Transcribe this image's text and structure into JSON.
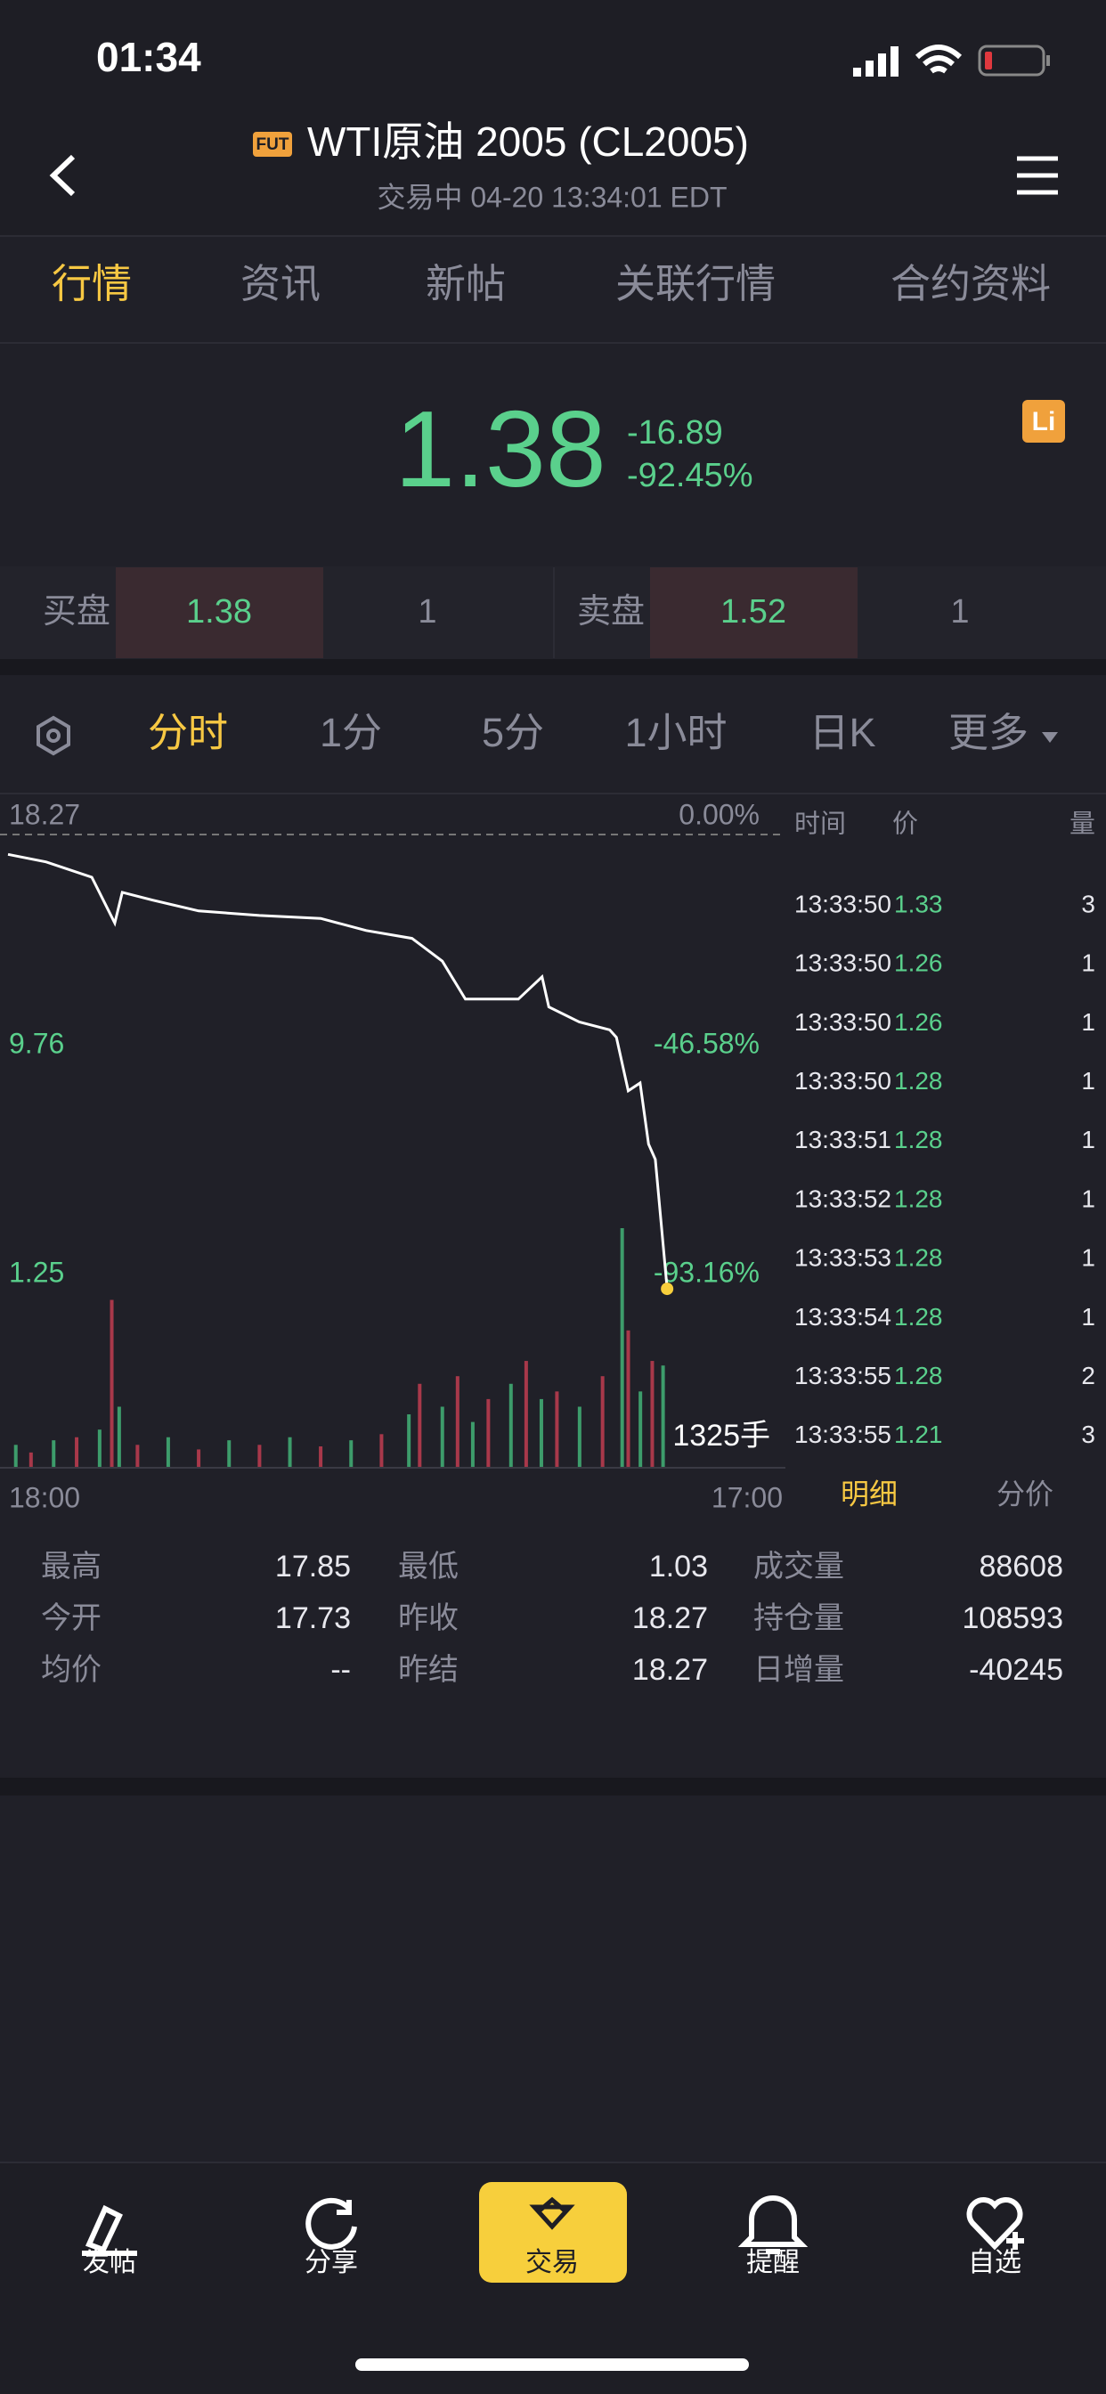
{
  "status_bar": {
    "time": "01:34"
  },
  "header": {
    "badge": "FUT",
    "title": "WTI原油 2005 (CL2005)",
    "subtitle": "交易中 04-20 13:34:01 EDT"
  },
  "tabs": {
    "items": [
      "行情",
      "资讯",
      "新帖",
      "关联行情",
      "合约资料"
    ],
    "active": 0
  },
  "quote": {
    "price": "1.38",
    "change": "-16.89",
    "change_pct": "-92.45%"
  },
  "order_book": {
    "bid_label": "买盘",
    "bid_price": "1.38",
    "bid_size": "1",
    "ask_label": "卖盘",
    "ask_price": "1.52",
    "ask_size": "1"
  },
  "periods": {
    "items": [
      "分时",
      "1分",
      "5分",
      "1小时",
      "日K",
      "更多"
    ],
    "active": 0
  },
  "chart_data": {
    "type": "line",
    "color": "#ffffff",
    "x": [
      0,
      1.13,
      2.48,
      3.16,
      3.38,
      4.28,
      5.64,
      7.44,
      9.25,
      10.6,
      11.95,
      12.85,
      13.53,
      14.2,
      15.1,
      15.8,
      16.0,
      16.9,
      17.8,
      18.0,
      18.35,
      18.7,
      18.95,
      19.15,
      19.5
    ],
    "values": [
      17.53,
      17.25,
      16.68,
      14.98,
      16.12,
      15.83,
      15.43,
      15.26,
      15.15,
      14.7,
      14.41,
      13.56,
      12.15,
      12.15,
      12.15,
      12.98,
      11.86,
      11.3,
      11.01,
      10.73,
      8.74,
      9.03,
      6.76,
      6.19,
      1.38
    ],
    "xlim": [
      0,
      23
    ],
    "xticks": [
      {
        "value": 0,
        "label": "18:00"
      },
      {
        "value": 23,
        "label": "17:00"
      }
    ],
    "ylim": [
      1.25,
      18.27
    ],
    "yticks": [
      18.27,
      9.76,
      1.25
    ],
    "y2lim": [
      -93.16,
      0
    ],
    "y2ticks": [
      {
        "value": 0,
        "label": "0.00%"
      },
      {
        "value": -46.58,
        "label": "-46.58%"
      },
      {
        "value": -93.16,
        "label": "-93.16%"
      }
    ],
    "volume": {
      "label": "1325手",
      "colors": [
        "#3d9c6b",
        "#a8384a"
      ],
      "x": [
        0.23,
        0.68,
        1.35,
        2.03,
        2.71,
        3.07,
        3.29,
        3.83,
        4.74,
        5.64,
        6.54,
        7.44,
        8.34,
        9.25,
        10.15,
        11.05,
        11.86,
        12.18,
        12.85,
        13.3,
        13.75,
        14.21,
        14.88,
        15.33,
        15.78,
        16.24,
        16.91,
        17.59,
        18.17,
        18.35,
        18.71,
        19.06,
        19.38
      ],
      "values": [
        150,
        100,
        180,
        200,
        250,
        1100,
        400,
        150,
        200,
        120,
        180,
        150,
        200,
        140,
        180,
        220,
        350,
        550,
        400,
        600,
        300,
        450,
        550,
        700,
        450,
        500,
        400,
        600,
        1570,
        900,
        500,
        700,
        670
      ]
    }
  },
  "trades": {
    "headers": [
      "时间",
      "价",
      "量"
    ],
    "rows": [
      [
        "13:33:50",
        "1.33",
        "3"
      ],
      [
        "13:33:50",
        "1.26",
        "1"
      ],
      [
        "13:33:50",
        "1.26",
        "1"
      ],
      [
        "13:33:50",
        "1.28",
        "1"
      ],
      [
        "13:33:51",
        "1.28",
        "1"
      ],
      [
        "13:33:52",
        "1.28",
        "1"
      ],
      [
        "13:33:53",
        "1.28",
        "1"
      ],
      [
        "13:33:54",
        "1.28",
        "1"
      ],
      [
        "13:33:55",
        "1.28",
        "2"
      ],
      [
        "13:33:55",
        "1.21",
        "3"
      ]
    ],
    "tabs": [
      "明细",
      "分价"
    ]
  },
  "stats": [
    [
      "最高",
      "17.85"
    ],
    [
      "最低",
      "1.03"
    ],
    [
      "成交量",
      "88608"
    ],
    [
      "今开",
      "17.73"
    ],
    [
      "昨收",
      "18.27"
    ],
    [
      "持仓量",
      "108593"
    ],
    [
      "均价",
      "--"
    ],
    [
      "昨结",
      "18.27"
    ],
    [
      "日增量",
      "-40245"
    ]
  ],
  "nav": [
    "发帖",
    "分享",
    "交易",
    "提醒",
    "自选"
  ]
}
